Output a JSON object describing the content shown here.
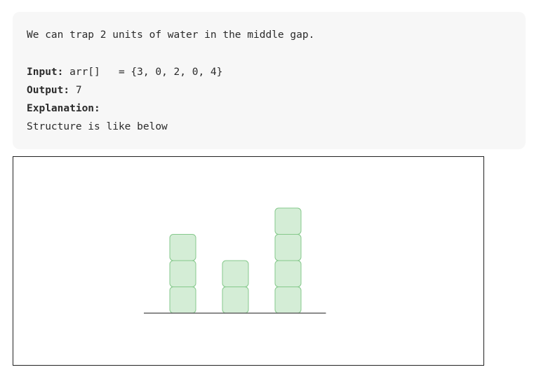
{
  "intro": "We can trap 2 units of water in the middle gap.",
  "input": {
    "label": "Input:",
    "value": "arr[]   = {3, 0, 2, 0, 4}"
  },
  "output": {
    "label": "Output:",
    "value": "7"
  },
  "explanation": {
    "label": "Explanation:",
    "text": "Structure is like below"
  },
  "figure": {
    "bars": [
      3,
      0,
      2,
      0,
      4
    ],
    "block_fill": "#d4edd6",
    "block_stroke": "#86c98c",
    "ground_color": "#666666"
  }
}
